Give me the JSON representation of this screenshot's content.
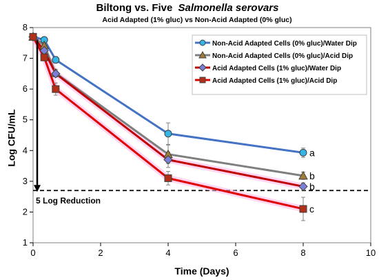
{
  "chart_data": {
    "type": "line",
    "title": "Biltong vs. Five",
    "title_italic": "Salmonella serovars",
    "subtitle": "Acid Adapted (1% gluc) vs Non-Acid Adapted (0% gluc)",
    "xlabel": "Time (Days)",
    "ylabel": "Log CFU/mL",
    "xlim": [
      0,
      10
    ],
    "ylim": [
      1,
      8
    ],
    "xticks": [
      0,
      2,
      4,
      6,
      8,
      10
    ],
    "yticks": [
      1,
      2,
      3,
      4,
      5,
      6,
      7,
      8
    ],
    "grid": false,
    "legend_position": "top-right",
    "x": [
      0,
      0.33,
      0.67,
      4,
      8
    ],
    "series": [
      {
        "name": "Non-Acid Adapted Cells (0% gluc)/Water Dip",
        "values": [
          7.7,
          7.6,
          6.95,
          4.55,
          3.93
        ],
        "errors": [
          0.05,
          0.05,
          0.1,
          0.35,
          0.15
        ],
        "color": "#4472C4",
        "marker": "circle",
        "marker_color": "#33B5E5",
        "letter": "a"
      },
      {
        "name": "Non-Acid Adapted Cells (0% gluc)/Acid Dip",
        "values": [
          7.7,
          7.42,
          6.52,
          3.88,
          3.18
        ],
        "errors": [
          0.05,
          0.08,
          0.12,
          0.3,
          0.12
        ],
        "color": "#7F7F7F",
        "marker": "triangle",
        "marker_color": "#A07C3A",
        "letter": "b"
      },
      {
        "name": "Acid Adapted Cells (1% gluc)/Water Dip",
        "values": [
          7.7,
          7.25,
          6.5,
          3.7,
          2.83
        ],
        "errors": [
          0.05,
          0.08,
          0.1,
          0.25,
          0.12
        ],
        "color": "#C00000",
        "marker": "diamond",
        "marker_color": "#7B7FD8",
        "letter": "b"
      },
      {
        "name": "Acid Adapted Cells (1% gluc)/Acid Dip",
        "values": [
          7.7,
          7.03,
          6.0,
          3.1,
          2.1
        ],
        "errors": [
          0.05,
          0.1,
          0.2,
          0.22,
          0.38
        ],
        "color": "#E00000",
        "marker": "square",
        "marker_color": "#B0301A",
        "letter": "c"
      }
    ],
    "reference_line": {
      "y": 2.7,
      "label": "5 Log Reduction"
    }
  }
}
